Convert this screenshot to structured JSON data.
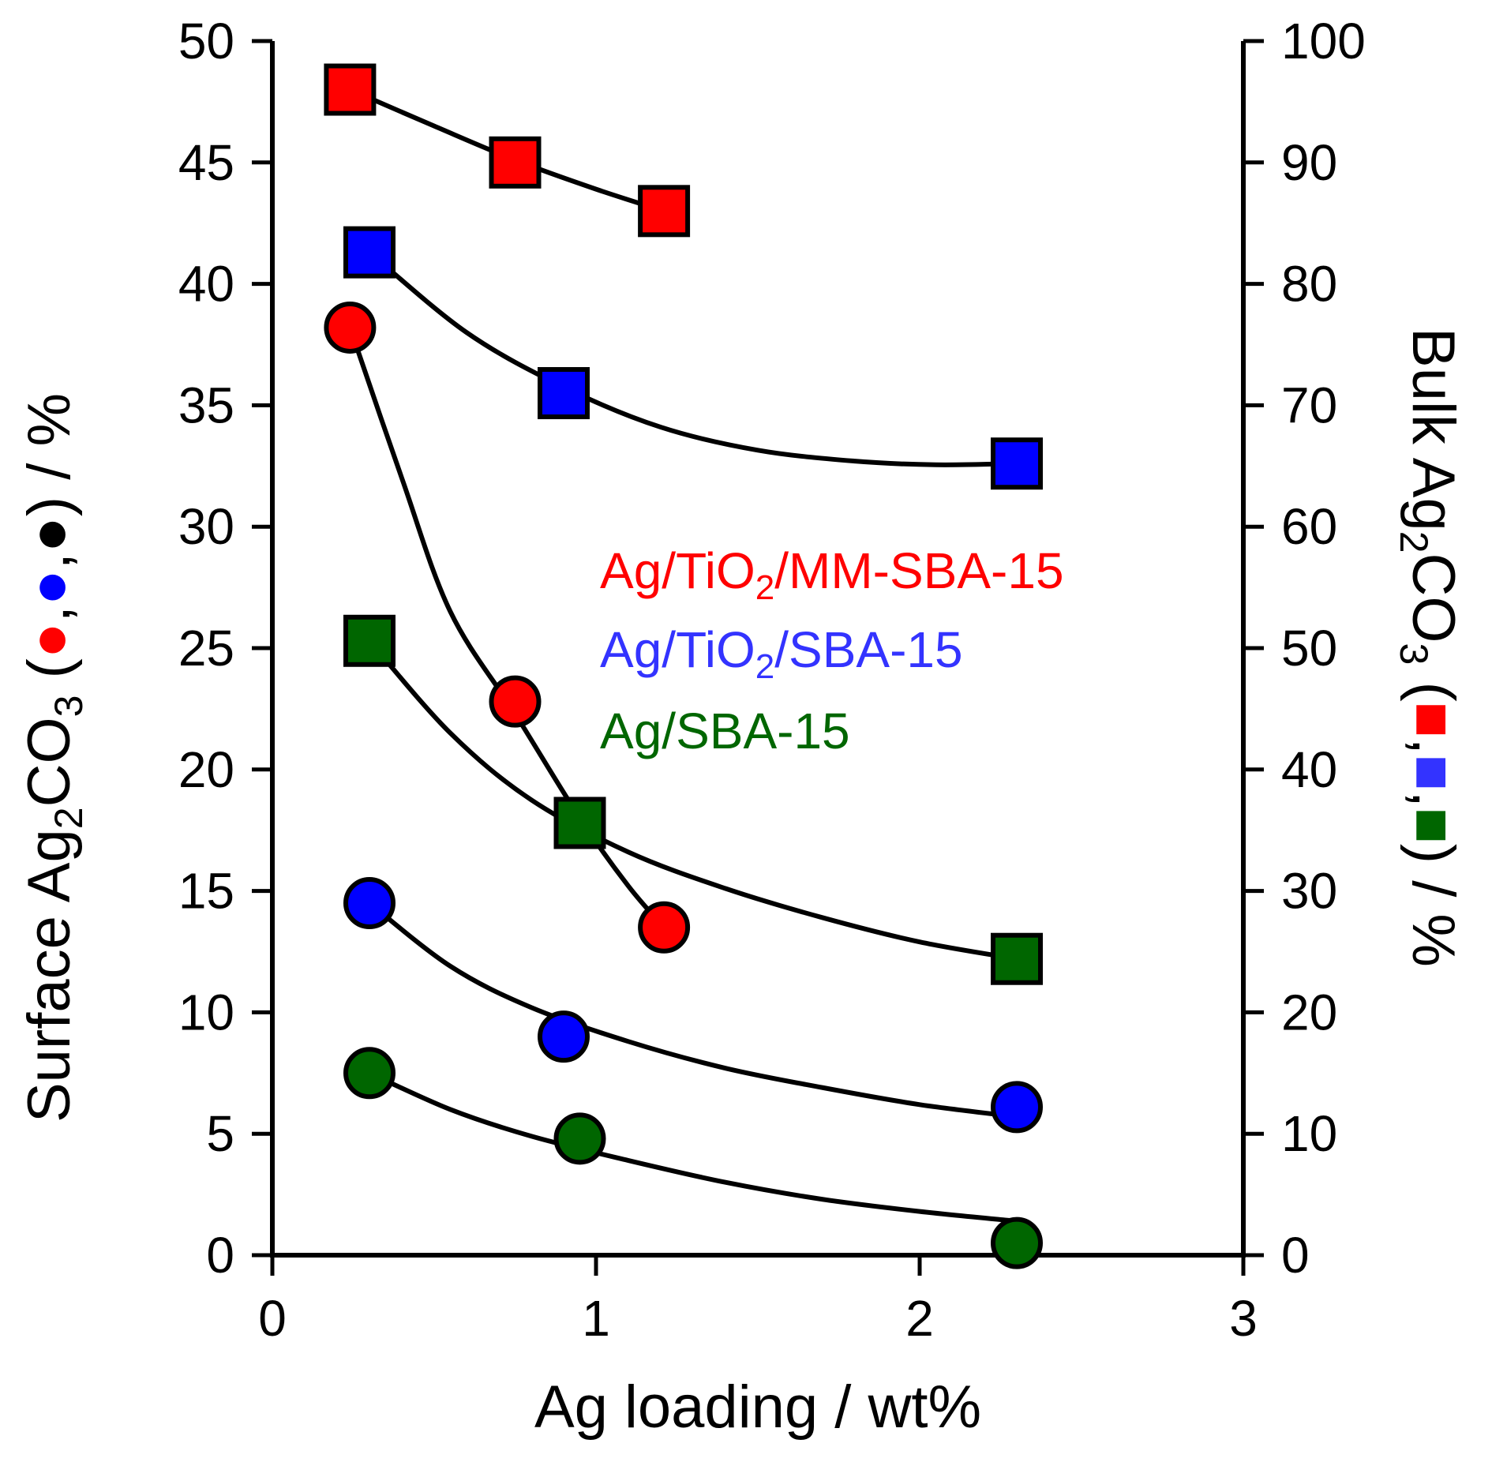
{
  "chart_data": {
    "type": "scatter",
    "x_axis": {
      "label": "Ag loading / wt%",
      "range": [
        0,
        3
      ],
      "ticks": [
        0,
        1,
        2,
        3
      ],
      "tick_labels": [
        "0",
        "1",
        "2",
        "3"
      ]
    },
    "y_axis_left": {
      "label_prefix": "Surface Ag",
      "label_sub": "2",
      "label_mid": "CO",
      "label_sub2": "3",
      "label_open": "  (",
      "label_comma": ",",
      "label_close": ") / %",
      "range": [
        0,
        50
      ],
      "ticks": [
        0,
        5,
        10,
        15,
        20,
        25,
        30,
        35,
        40,
        45,
        50
      ],
      "tick_labels": [
        "0",
        "5",
        "10",
        "15",
        "20",
        "25",
        "30",
        "35",
        "40",
        "45",
        "50"
      ]
    },
    "y_axis_right": {
      "label_prefix": "Bulk Ag",
      "label_sub": "2",
      "label_mid": "CO",
      "label_sub2": "3",
      "label_open": " (",
      "label_comma": ",",
      "label_close": ") / %",
      "range": [
        0,
        100
      ],
      "ticks": [
        0,
        10,
        20,
        30,
        40,
        50,
        60,
        70,
        80,
        90,
        100
      ],
      "tick_labels": [
        "0",
        "10",
        "20",
        "30",
        "40",
        "50",
        "60",
        "70",
        "80",
        "90",
        "100"
      ]
    },
    "legend": [
      {
        "name": "Ag/TiO2/MM-SBA-15",
        "parts": [
          "Ag/TiO",
          "2",
          "/MM-SBA-15"
        ],
        "color": "#ff0000"
      },
      {
        "name": "Ag/TiO2/SBA-15",
        "parts": [
          "Ag/TiO",
          "2",
          "/SBA-15"
        ],
        "color": "#3333ff"
      },
      {
        "name": "Ag/SBA-15",
        "parts": [
          "Ag/SBA-15",
          "",
          ""
        ],
        "color": "#006600"
      }
    ],
    "series": [
      {
        "name": "Ag/TiO2/MM-SBA-15 surface",
        "marker": "circle",
        "axis": "left",
        "color": "#ff0000",
        "x": [
          0.24,
          0.75,
          1.21
        ],
        "y": [
          38.2,
          22.8,
          13.5
        ]
      },
      {
        "name": "Ag/TiO2/SBA-15 surface",
        "marker": "circle",
        "axis": "left",
        "color": "#0000ff",
        "x": [
          0.3,
          0.9,
          2.3
        ],
        "y": [
          14.5,
          9.0,
          6.1
        ]
      },
      {
        "name": "Ag/SBA-15 surface",
        "marker": "circle",
        "axis": "left",
        "color": "#006600",
        "x": [
          0.3,
          0.95,
          2.3
        ],
        "y": [
          7.5,
          4.8,
          0.5
        ]
      },
      {
        "name": "Ag/TiO2/MM-SBA-15 bulk",
        "marker": "square",
        "axis": "right",
        "color": "#ff0000",
        "x": [
          0.24,
          0.75,
          1.21
        ],
        "y": [
          96.0,
          90.0,
          86.0
        ]
      },
      {
        "name": "Ag/TiO2/SBA-15 bulk",
        "marker": "square",
        "axis": "right",
        "color": "#0000ff",
        "x": [
          0.3,
          0.9,
          2.3
        ],
        "y": [
          82.6,
          71.0,
          65.2
        ]
      },
      {
        "name": "Ag/SBA-15 bulk",
        "marker": "square",
        "axis": "right",
        "color": "#006600",
        "x": [
          0.3,
          0.95,
          2.3
        ],
        "y": [
          50.6,
          35.6,
          24.4
        ]
      }
    ],
    "fit_curves": [
      {
        "axis": "right",
        "x": [
          0.24,
          0.5,
          0.75,
          1.0,
          1.21
        ],
        "y": [
          96.0,
          93.0,
          90.2,
          87.8,
          86.0
        ]
      },
      {
        "axis": "right",
        "x": [
          0.3,
          0.6,
          0.9,
          1.2,
          1.5,
          1.8,
          2.05,
          2.3
        ],
        "y": [
          82.6,
          76.0,
          71.5,
          68.2,
          66.3,
          65.4,
          65.1,
          65.2
        ]
      },
      {
        "axis": "right",
        "x": [
          0.3,
          0.55,
          0.8,
          1.1,
          1.4,
          1.7,
          2.0,
          2.3
        ],
        "y": [
          50.6,
          43.0,
          37.5,
          33.2,
          30.2,
          27.8,
          25.8,
          24.4
        ]
      },
      {
        "axis": "left",
        "x": [
          0.24,
          0.4,
          0.55,
          0.75,
          0.95,
          1.1,
          1.21
        ],
        "y": [
          38.2,
          32.0,
          26.5,
          22.3,
          18.0,
          15.2,
          13.5
        ]
      },
      {
        "axis": "left",
        "x": [
          0.3,
          0.55,
          0.8,
          1.1,
          1.4,
          1.7,
          2.0,
          2.3
        ],
        "y": [
          14.5,
          11.9,
          10.2,
          8.8,
          7.7,
          6.9,
          6.2,
          5.7
        ]
      },
      {
        "axis": "left",
        "x": [
          0.3,
          0.55,
          0.8,
          1.1,
          1.4,
          1.7,
          2.0,
          2.3
        ],
        "y": [
          7.5,
          6.0,
          4.9,
          3.9,
          3.0,
          2.3,
          1.8,
          1.4
        ]
      }
    ],
    "grid": false
  }
}
